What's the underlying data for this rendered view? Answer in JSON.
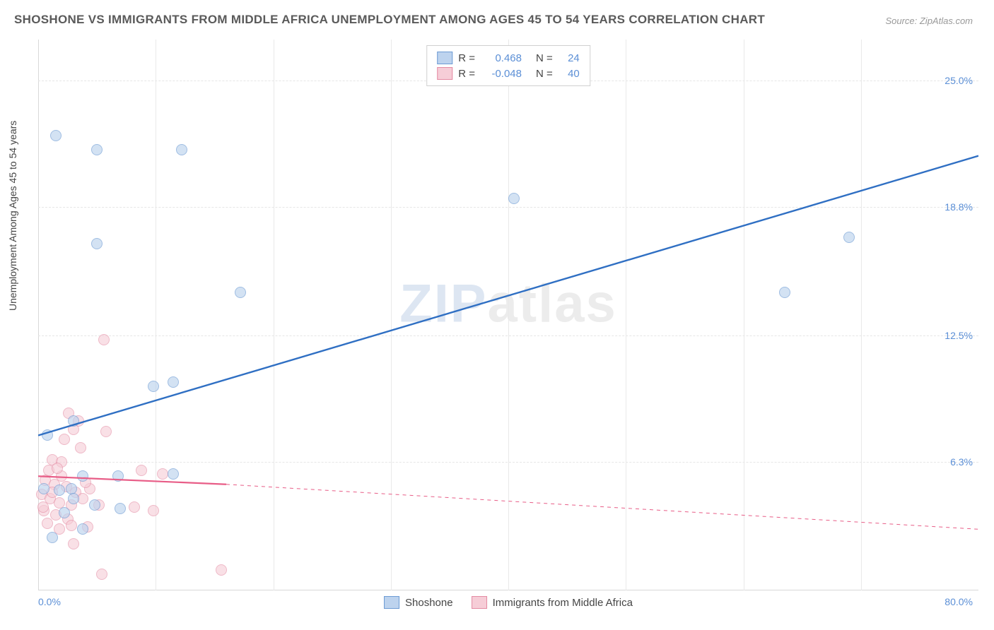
{
  "title": "SHOSHONE VS IMMIGRANTS FROM MIDDLE AFRICA UNEMPLOYMENT AMONG AGES 45 TO 54 YEARS CORRELATION CHART",
  "source": "Source: ZipAtlas.com",
  "y_axis_label": "Unemployment Among Ages 45 to 54 years",
  "watermark": {
    "left": "ZIP",
    "right": "atlas"
  },
  "chart": {
    "type": "scatter",
    "xlim": [
      0,
      80
    ],
    "ylim": [
      0,
      27
    ],
    "x_ticks": [
      {
        "value": 0,
        "label": "0.0%"
      },
      {
        "value": 80,
        "label": "80.0%"
      }
    ],
    "y_ticks": [
      {
        "value": 6.3,
        "label": "6.3%"
      },
      {
        "value": 12.5,
        "label": "12.5%"
      },
      {
        "value": 18.8,
        "label": "18.8%"
      },
      {
        "value": 25.0,
        "label": "25.0%"
      }
    ],
    "x_grid_values": [
      10,
      20,
      30,
      40,
      50,
      60,
      70
    ],
    "background_color": "#ffffff",
    "grid_color": "#e6e6e6",
    "series": {
      "shoshone": {
        "label": "Shoshone",
        "fill": "#bdd3ee",
        "stroke": "#6d9bd4",
        "fill_opacity": 0.65,
        "line_color": "#2f6fc3",
        "line_width": 2.4,
        "marker_size": 16,
        "R": "0.468",
        "N": "24",
        "trend": {
          "x1": 0,
          "y1": 7.6,
          "x2": 80,
          "y2": 21.3,
          "dash_extend": false
        },
        "points": [
          {
            "x": 1.5,
            "y": 22.3
          },
          {
            "x": 5.0,
            "y": 21.6
          },
          {
            "x": 12.2,
            "y": 21.6
          },
          {
            "x": 40.5,
            "y": 19.2
          },
          {
            "x": 5.0,
            "y": 17.0
          },
          {
            "x": 69.0,
            "y": 17.3
          },
          {
            "x": 17.2,
            "y": 14.6
          },
          {
            "x": 63.5,
            "y": 14.6
          },
          {
            "x": 11.5,
            "y": 10.2
          },
          {
            "x": 9.8,
            "y": 10.0
          },
          {
            "x": 3.0,
            "y": 8.3
          },
          {
            "x": 0.8,
            "y": 7.6
          },
          {
            "x": 3.8,
            "y": 5.6
          },
          {
            "x": 6.8,
            "y": 5.6
          },
          {
            "x": 11.5,
            "y": 5.7
          },
          {
            "x": 0.5,
            "y": 5.0
          },
          {
            "x": 1.8,
            "y": 4.9
          },
          {
            "x": 2.8,
            "y": 5.0
          },
          {
            "x": 4.8,
            "y": 4.2
          },
          {
            "x": 7.0,
            "y": 4.0
          },
          {
            "x": 2.2,
            "y": 3.8
          },
          {
            "x": 3.8,
            "y": 3.0
          },
          {
            "x": 1.2,
            "y": 2.6
          },
          {
            "x": 3.0,
            "y": 4.5
          }
        ]
      },
      "immigrants": {
        "label": "Immigrants from Middle Africa",
        "fill": "#f6cdd7",
        "stroke": "#e48ba3",
        "fill_opacity": 0.6,
        "line_color": "#e85d87",
        "line_width": 2.2,
        "marker_size": 16,
        "R": "-0.048",
        "N": "40",
        "trend": {
          "x1": 0,
          "y1": 5.6,
          "x2": 16,
          "y2": 5.2,
          "dash_extend": true,
          "dash_x2": 80,
          "dash_y2": 3.0
        },
        "points": [
          {
            "x": 5.6,
            "y": 12.3
          },
          {
            "x": 2.6,
            "y": 8.7
          },
          {
            "x": 3.4,
            "y": 8.3
          },
          {
            "x": 3.0,
            "y": 7.9
          },
          {
            "x": 5.8,
            "y": 7.8
          },
          {
            "x": 2.2,
            "y": 7.4
          },
          {
            "x": 3.6,
            "y": 7.0
          },
          {
            "x": 1.2,
            "y": 6.4
          },
          {
            "x": 2.0,
            "y": 6.3
          },
          {
            "x": 8.8,
            "y": 5.9
          },
          {
            "x": 10.6,
            "y": 5.7
          },
          {
            "x": 0.6,
            "y": 5.4
          },
          {
            "x": 1.4,
            "y": 5.2
          },
          {
            "x": 2.4,
            "y": 5.1
          },
          {
            "x": 3.2,
            "y": 4.8
          },
          {
            "x": 4.4,
            "y": 5.0
          },
          {
            "x": 0.3,
            "y": 4.7
          },
          {
            "x": 1.0,
            "y": 4.5
          },
          {
            "x": 1.8,
            "y": 4.3
          },
          {
            "x": 2.8,
            "y": 4.2
          },
          {
            "x": 3.8,
            "y": 4.5
          },
          {
            "x": 5.2,
            "y": 4.2
          },
          {
            "x": 8.2,
            "y": 4.1
          },
          {
            "x": 9.8,
            "y": 3.9
          },
          {
            "x": 0.5,
            "y": 3.9
          },
          {
            "x": 1.5,
            "y": 3.7
          },
          {
            "x": 2.5,
            "y": 3.5
          },
          {
            "x": 0.8,
            "y": 3.3
          },
          {
            "x": 1.8,
            "y": 3.0
          },
          {
            "x": 2.8,
            "y": 3.2
          },
          {
            "x": 4.2,
            "y": 3.1
          },
          {
            "x": 0.4,
            "y": 4.1
          },
          {
            "x": 1.2,
            "y": 4.8
          },
          {
            "x": 2.0,
            "y": 5.6
          },
          {
            "x": 3.0,
            "y": 2.3
          },
          {
            "x": 5.4,
            "y": 0.8
          },
          {
            "x": 15.6,
            "y": 1.0
          },
          {
            "x": 0.9,
            "y": 5.9
          },
          {
            "x": 1.6,
            "y": 6.0
          },
          {
            "x": 4.0,
            "y": 5.3
          }
        ]
      }
    },
    "legend_top": {
      "rows": [
        {
          "swatch_fill": "#bdd3ee",
          "swatch_stroke": "#6d9bd4",
          "R_label": "R =",
          "R_val": "0.468",
          "N_label": "N =",
          "N_val": "24"
        },
        {
          "swatch_fill": "#f6cdd7",
          "swatch_stroke": "#e48ba3",
          "R_label": "R =",
          "R_val": "-0.048",
          "N_label": "N =",
          "N_val": "40"
        }
      ]
    }
  }
}
